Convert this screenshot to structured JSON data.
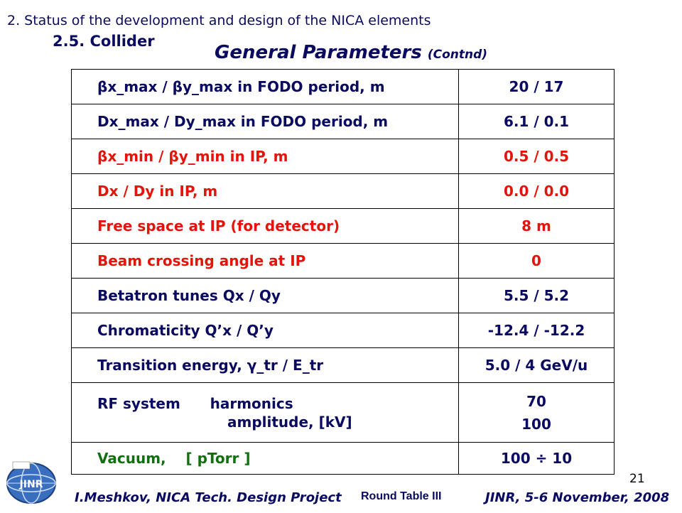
{
  "header": {
    "line": "2. Status of the development and design of the NICA elements",
    "section": "2.5. Collider"
  },
  "title": {
    "main": "General Parameters",
    "suffix": "(Contnd)"
  },
  "table": {
    "rows": [
      {
        "label": "βx_max / βy_max in FODO period, m",
        "value": "20 / 17",
        "color": "#0a0a60"
      },
      {
        "label": "Dx_max / Dy_max in FODO period, m",
        "value": "6.1 / 0.1",
        "color": "#0a0a60"
      },
      {
        "label": "βx_min / βy_min in IP, m",
        "value": "0.5 / 0.5",
        "color": "#e3140c"
      },
      {
        "label": "Dx / Dy in IP, m",
        "value": "0.0 / 0.0",
        "color": "#e3140c"
      },
      {
        "label": "Free space at IP (for detector)",
        "value": "8 m",
        "color": "#e3140c"
      },
      {
        "label": "Beam crossing angle at IP",
        "value": "0",
        "color": "#e3140c"
      },
      {
        "label": "Betatron tunes Qx / Qy",
        "value": "5.5 / 5.2",
        "color": "#0a0a60"
      },
      {
        "label": "Chromaticity Q’x / Q’y",
        "value": "-12.4 / -12.2",
        "color": "#0a0a60"
      },
      {
        "label": "Transition energy, γ_tr / E_tr",
        "value": "5.0 / 4 GeV/u",
        "color": "#0a0a60"
      }
    ],
    "rf": {
      "label_line1": "RF system      harmonics",
      "label_line2": "amplitude, [kV]",
      "value_line1": "70",
      "value_line2": "100",
      "color": "#0a0a60"
    },
    "vacuum": {
      "label": "Vacuum,    [ pTorr ]",
      "value": "100 ÷ 10",
      "label_color": "#107010",
      "value_color": "#0a0a60"
    }
  },
  "footer": {
    "left": "I.Meshkov, NICA Tech. Design Project",
    "middle": "Round Table III",
    "right": "JINR, 5-6 November, 2008",
    "page_number": "21"
  },
  "logo": {
    "text": "JINR"
  }
}
